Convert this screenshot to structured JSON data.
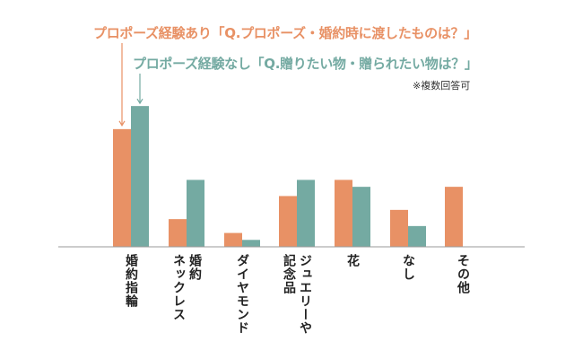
{
  "chart_data": {
    "type": "bar",
    "categories": [
      "婚約指輪",
      "婚約\nネックレス",
      "ダイヤモンド",
      "ジュエリーや\n記念品",
      "花",
      "なし",
      "その他"
    ],
    "series": [
      {
        "name": "プロポーズ経験あり「Q.プロポーズ・婚約時に渡したものは？」",
        "values": [
          51,
          12,
          6,
          22,
          29,
          16,
          26
        ]
      },
      {
        "name": "プロポーズ経験なし「Q.贈りたい物・贈られたい物は？」",
        "values": [
          61,
          29,
          3,
          29,
          26,
          9,
          0
        ]
      }
    ],
    "ylim": [
      0,
      70
    ],
    "note": "※複数回答可",
    "grid": false,
    "colors": {
      "series_a": "#e89165",
      "series_b": "#74aaa2"
    }
  }
}
